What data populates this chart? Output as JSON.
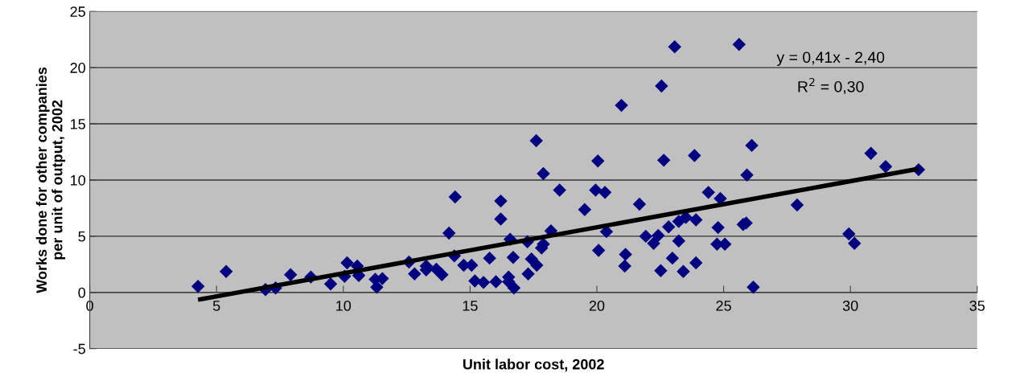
{
  "chart_data": {
    "type": "scatter",
    "xlabel": "Unit labor cost, 2002",
    "ylabel": "Works done for other companies\nper unit of output, 2002",
    "annotations": [
      "y = 0,41x - 2,40",
      "R$^{2}$ = 0,30"
    ],
    "xlim": [
      0,
      35
    ],
    "xticks": [
      0,
      5,
      10,
      15,
      20,
      25,
      30,
      35
    ],
    "ylim": [
      -5,
      25
    ],
    "yticks": [
      -5,
      0,
      5,
      10,
      15,
      20,
      25
    ],
    "grid": "y",
    "legend": false,
    "marker": "diamond",
    "series": [
      {
        "color": "#000080",
        "x": [
          4.27,
          5.38,
          6.93,
          7.33,
          7.92,
          8.72,
          9.5,
          10.15,
          10.05,
          10.55,
          10.61,
          11.26,
          11.32,
          11.54,
          12.59,
          12.81,
          13.27,
          13.27,
          13.67,
          13.89,
          14.17,
          14.41,
          14.38,
          14.75,
          15.06,
          15.19,
          15.53,
          15.77,
          16.02,
          16.21,
          16.21,
          16.52,
          16.52,
          16.73,
          16.58,
          16.7,
          17.26,
          17.29,
          17.42,
          17.63,
          17.61,
          17.89,
          17.82,
          17.89,
          18.19,
          18.53,
          19.52,
          20.04,
          19.95,
          20.32,
          20.07,
          20.38,
          21.13,
          21.1,
          21.68,
          21.93,
          22.24,
          22.42,
          22.83,
          23.23,
          22.52,
          22.98,
          23.41,
          23.91,
          23.23,
          23.51,
          23.91,
          22.64,
          23.85,
          24.4,
          24.87,
          24.78,
          24.74,
          25.05,
          26.11,
          25.92,
          25.77,
          25.89,
          26.17,
          27.9,
          29.94,
          30.16,
          30.81,
          31.39,
          32.69,
          23.07,
          25.61,
          22.55,
          20.97
        ],
        "values": [
          0.54,
          1.86,
          0.26,
          0.4,
          1.58,
          1.37,
          0.75,
          2.63,
          1.44,
          2.35,
          1.51,
          1.16,
          0.47,
          1.23,
          2.7,
          1.65,
          2.35,
          2.0,
          2.07,
          1.58,
          5.28,
          8.5,
          3.25,
          2.42,
          2.42,
          1.02,
          0.89,
          3.05,
          0.95,
          8.13,
          6.53,
          1.37,
          0.95,
          0.4,
          4.72,
          3.12,
          4.51,
          1.65,
          2.98,
          2.42,
          13.5,
          10.57,
          3.95,
          4.3,
          5.48,
          9.11,
          7.37,
          11.69,
          9.11,
          8.9,
          3.74,
          5.41,
          3.39,
          2.35,
          7.85,
          5.0,
          4.37,
          5.07,
          5.83,
          4.58,
          1.93,
          3.05,
          1.86,
          2.63,
          6.32,
          6.67,
          6.46,
          11.76,
          12.18,
          8.9,
          8.35,
          5.77,
          4.3,
          4.3,
          13.08,
          10.44,
          6.04,
          6.18,
          0.47,
          7.78,
          5.2,
          4.37,
          12.38,
          11.2,
          10.92,
          21.85,
          22.06,
          18.37,
          16.64
        ]
      },
      {
        "type": "line",
        "color": "#000000",
        "line_style": "solid",
        "marker": "none",
        "x": [
          4.27,
          32.69
        ],
        "values": [
          -0.65,
          11.0
        ]
      }
    ]
  }
}
